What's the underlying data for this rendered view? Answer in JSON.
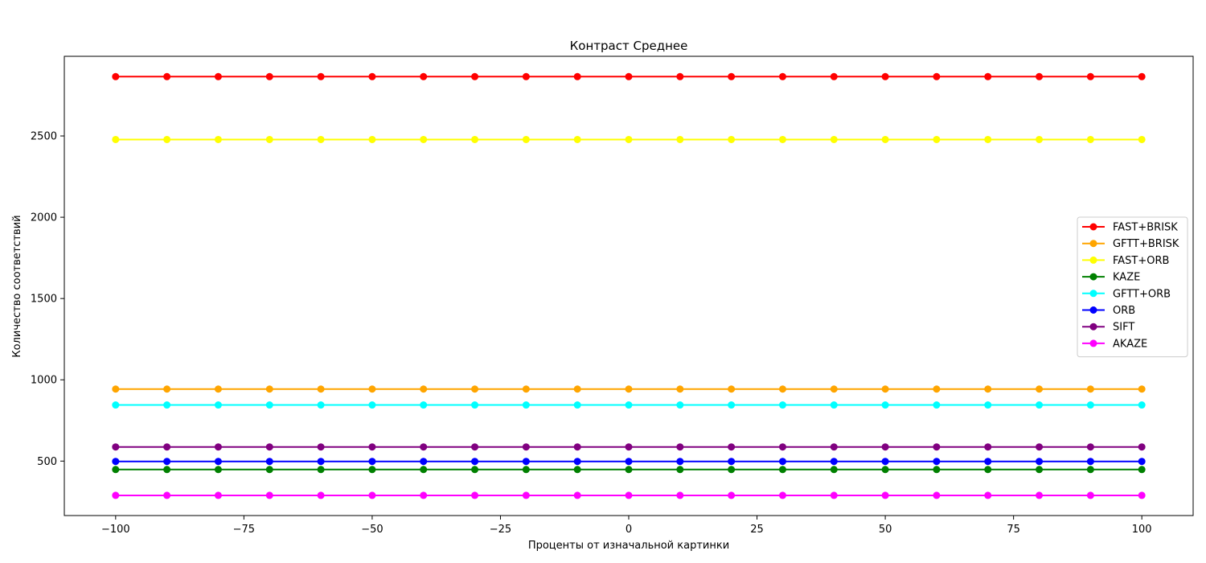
{
  "chart_data": {
    "type": "line",
    "title": "Контраст Среднее",
    "xlabel": "Проценты от изначальной картинки",
    "ylabel": "Количество соответствий",
    "x": [
      -100,
      -90,
      -80,
      -70,
      -60,
      -50,
      -40,
      -30,
      -20,
      -10,
      0,
      10,
      20,
      30,
      40,
      50,
      60,
      70,
      80,
      90,
      100
    ],
    "xlim": [
      -110,
      110
    ],
    "ylim": [
      165,
      2990
    ],
    "xticks": [
      -100,
      -75,
      -50,
      -25,
      0,
      25,
      50,
      75,
      100
    ],
    "xtick_labels": [
      "−100",
      "−75",
      "−50",
      "−25",
      "0",
      "25",
      "50",
      "75",
      "100"
    ],
    "yticks": [
      500,
      1000,
      1500,
      2000,
      2500
    ],
    "ytick_labels": [
      "500",
      "1000",
      "1500",
      "2000",
      "2500"
    ],
    "grid": false,
    "legend_position": "center-right",
    "series": [
      {
        "name": "FAST+BRISK",
        "color": "#ff0000",
        "values": [
          2865,
          2865,
          2865,
          2865,
          2865,
          2865,
          2865,
          2865,
          2865,
          2865,
          2865,
          2865,
          2865,
          2865,
          2865,
          2865,
          2865,
          2865,
          2865,
          2865,
          2865
        ]
      },
      {
        "name": "GFTT+BRISK",
        "color": "#ffa500",
        "values": [
          943,
          943,
          943,
          943,
          943,
          943,
          943,
          943,
          943,
          943,
          943,
          943,
          943,
          943,
          943,
          943,
          943,
          943,
          943,
          943,
          943
        ]
      },
      {
        "name": "FAST+ORB",
        "color": "#ffff00",
        "values": [
          2478,
          2478,
          2478,
          2478,
          2478,
          2478,
          2478,
          2478,
          2478,
          2478,
          2478,
          2478,
          2478,
          2478,
          2478,
          2478,
          2478,
          2478,
          2478,
          2478,
          2478
        ]
      },
      {
        "name": "KAZE",
        "color": "#008000",
        "values": [
          448,
          448,
          448,
          448,
          448,
          448,
          448,
          448,
          448,
          448,
          448,
          448,
          448,
          448,
          448,
          448,
          448,
          448,
          448,
          448,
          448
        ]
      },
      {
        "name": "GFTT+ORB",
        "color": "#00ffff",
        "values": [
          845,
          845,
          845,
          845,
          845,
          845,
          845,
          845,
          845,
          845,
          845,
          845,
          845,
          845,
          845,
          845,
          845,
          845,
          845,
          845,
          845
        ]
      },
      {
        "name": "ORB",
        "color": "#0000ff",
        "values": [
          498,
          498,
          498,
          498,
          498,
          498,
          498,
          498,
          498,
          498,
          498,
          498,
          498,
          498,
          498,
          498,
          498,
          498,
          498,
          498,
          498
        ]
      },
      {
        "name": "SIFT",
        "color": "#800080",
        "values": [
          587,
          587,
          587,
          587,
          587,
          587,
          587,
          587,
          587,
          587,
          587,
          587,
          587,
          587,
          587,
          587,
          587,
          587,
          587,
          587,
          587
        ]
      },
      {
        "name": "AKAZE",
        "color": "#ff00ff",
        "values": [
          289,
          289,
          289,
          289,
          289,
          289,
          289,
          289,
          289,
          289,
          289,
          289,
          289,
          289,
          289,
          289,
          289,
          289,
          289,
          289,
          289
        ]
      }
    ]
  }
}
